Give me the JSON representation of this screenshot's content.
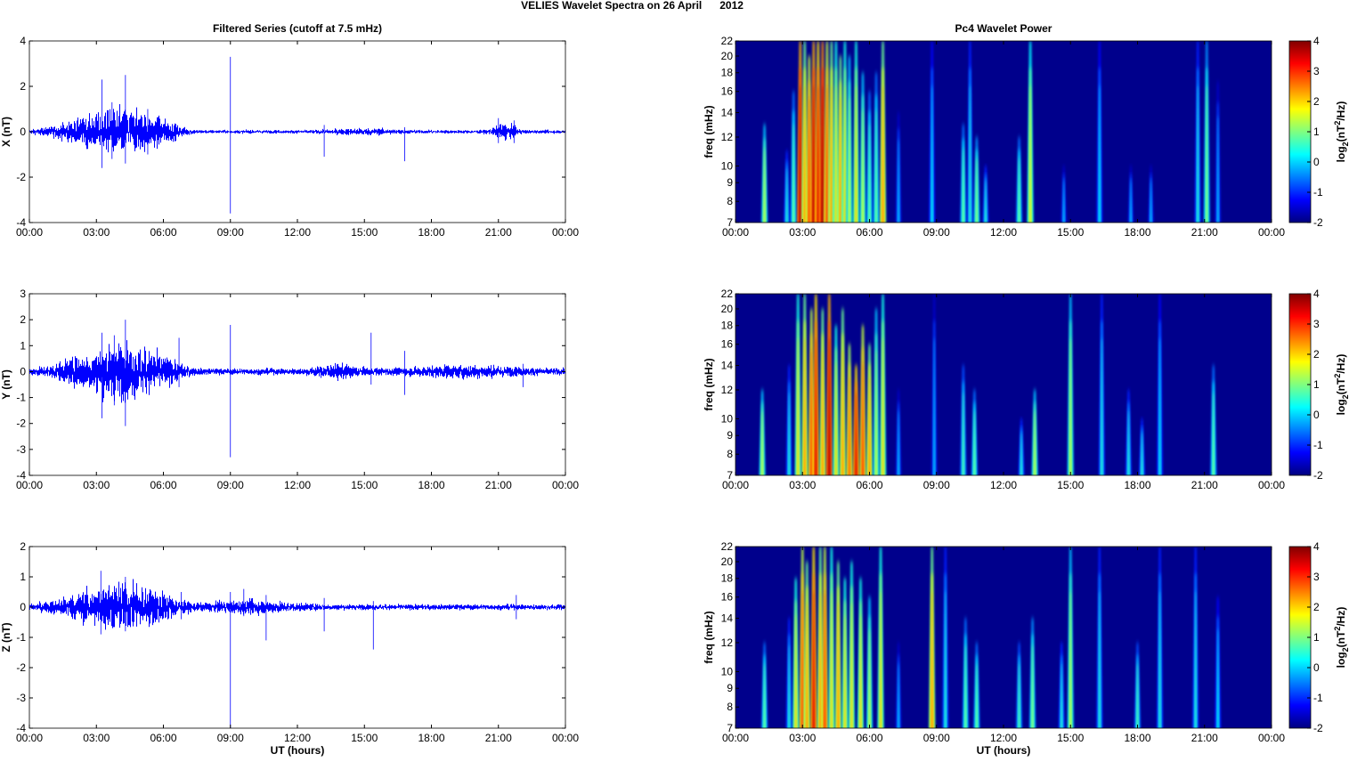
{
  "title": "VELIES Wavelet Spectra on 26 April      2012",
  "chart_data": {
    "type": "line+heatmap",
    "left_title": "Filtered Series (cutoff at 7.5 mHz)",
    "right_title": "Pc4 Wavelet Power",
    "xlabel": "UT (hours)",
    "xticks": [
      "00:00",
      "03:00",
      "06:00",
      "09:00",
      "12:00",
      "15:00",
      "18:00",
      "21:00",
      "00:00"
    ],
    "xlim": [
      0,
      24
    ],
    "freq_label": "freq (mHz)",
    "freq_ticks": [
      7,
      8,
      9,
      10,
      12,
      14,
      16,
      18,
      20,
      22
    ],
    "freq_lim": [
      7,
      22
    ],
    "colorbar": {
      "label_parts": [
        "log",
        "2",
        "(nT",
        "2",
        "/Hz)"
      ],
      "ticks": [
        -2,
        -1,
        0,
        1,
        2,
        3,
        4
      ],
      "lim": [
        -2,
        4
      ],
      "colormap": "jet"
    },
    "series": [
      {
        "name": "X",
        "ylabel": "X (nT)",
        "ylim": [
          -4,
          4
        ],
        "yticks": [
          -4,
          -2,
          0,
          2,
          4
        ],
        "color": "#0000ff",
        "base": 0.05,
        "activity": [
          [
            2.5,
            1.5,
            0.3
          ],
          [
            4.2,
            1.2,
            0.55
          ],
          [
            5.8,
            1,
            0.3
          ],
          [
            21.3,
            0.5,
            0.2
          ],
          [
            15,
            1.5,
            0.06
          ]
        ],
        "spikes": [
          [
            3.25,
            2.3,
            -1.6
          ],
          [
            4.3,
            2.5,
            -1.4
          ],
          [
            3.7,
            1.3,
            -1.2
          ],
          [
            5.3,
            1.0,
            -1.0
          ],
          [
            9.0,
            3.3,
            -3.6
          ],
          [
            13.2,
            0.3,
            -1.1
          ],
          [
            16.8,
            0.2,
            -1.3
          ],
          [
            21.0,
            0.6,
            -0.5
          ],
          [
            21.7,
            0.5,
            -0.5
          ]
        ]
      },
      {
        "name": "Y",
        "ylabel": "Y (nT)",
        "ylim": [
          -4,
          3
        ],
        "yticks": [
          -4,
          -3,
          -2,
          -1,
          0,
          1,
          2,
          3
        ],
        "color": "#0000ff",
        "base": 0.08,
        "activity": [
          [
            2.5,
            1.5,
            0.3
          ],
          [
            4.2,
            1.2,
            0.55
          ],
          [
            5.8,
            1,
            0.3
          ],
          [
            13.8,
            1,
            0.12
          ],
          [
            19.5,
            2.5,
            0.1
          ]
        ],
        "spikes": [
          [
            3.25,
            1.5,
            -1.8
          ],
          [
            4.3,
            2.0,
            -2.1
          ],
          [
            3.8,
            1.4,
            -1.3
          ],
          [
            6.7,
            1.3,
            -0.6
          ],
          [
            9.0,
            1.8,
            -3.3
          ],
          [
            15.3,
            1.5,
            -0.5
          ],
          [
            16.8,
            0.8,
            -0.9
          ],
          [
            22.1,
            0.3,
            -0.6
          ]
        ]
      },
      {
        "name": "Z",
        "ylabel": "Z (nT)",
        "ylim": [
          -4,
          2
        ],
        "yticks": [
          -4,
          -3,
          -2,
          -1,
          0,
          1,
          2
        ],
        "color": "#0000ff",
        "base": 0.06,
        "activity": [
          [
            2.5,
            1.5,
            0.25
          ],
          [
            4.2,
            1.2,
            0.4
          ],
          [
            5.8,
            1,
            0.25
          ],
          [
            10,
            2,
            0.1
          ]
        ],
        "spikes": [
          [
            3.2,
            1.2,
            -0.9
          ],
          [
            4.3,
            1.0,
            -0.8
          ],
          [
            6.8,
            0.5,
            -0.4
          ],
          [
            9.0,
            0.5,
            -4.0
          ],
          [
            9.6,
            0.6,
            -0.3
          ],
          [
            10.6,
            0.4,
            -1.1
          ],
          [
            13.2,
            0.3,
            -0.8
          ],
          [
            15.4,
            0.2,
            -1.4
          ],
          [
            21.8,
            0.4,
            -0.4
          ]
        ]
      }
    ],
    "spectra": [
      {
        "name": "X",
        "bursts": [
          [
            1.3,
            1.5,
            13
          ],
          [
            2.3,
            0.5,
            11
          ],
          [
            2.6,
            1,
            16
          ],
          [
            2.9,
            3.8,
            22
          ],
          [
            3.1,
            2.5,
            22
          ],
          [
            3.3,
            3,
            20
          ],
          [
            3.5,
            3.8,
            22
          ],
          [
            3.7,
            3.5,
            22
          ],
          [
            3.9,
            4,
            22
          ],
          [
            4.1,
            3,
            22
          ],
          [
            4.3,
            2.5,
            22
          ],
          [
            4.5,
            2,
            22
          ],
          [
            4.7,
            2.5,
            20
          ],
          [
            4.9,
            2,
            22
          ],
          [
            5.1,
            1.5,
            20
          ],
          [
            5.4,
            2,
            22
          ],
          [
            5.7,
            1.5,
            18
          ],
          [
            6.0,
            1,
            16
          ],
          [
            6.3,
            1,
            18
          ],
          [
            6.6,
            2.5,
            22
          ],
          [
            7.3,
            0,
            14
          ],
          [
            8.8,
            0.3,
            22
          ],
          [
            10.2,
            1,
            13
          ],
          [
            10.5,
            0.5,
            22
          ],
          [
            10.8,
            1.2,
            12
          ],
          [
            11.2,
            0.5,
            10
          ],
          [
            12.7,
            1,
            12
          ],
          [
            13.2,
            1.8,
            22
          ],
          [
            14.7,
            0,
            10
          ],
          [
            16.3,
            0.3,
            22
          ],
          [
            17.7,
            0,
            10
          ],
          [
            18.6,
            0,
            10
          ],
          [
            20.7,
            0.5,
            22
          ],
          [
            21.1,
            1.2,
            22
          ],
          [
            21.6,
            0,
            17
          ]
        ]
      },
      {
        "name": "Y",
        "bursts": [
          [
            1.2,
            1.5,
            12
          ],
          [
            2.4,
            0.5,
            14
          ],
          [
            2.8,
            2,
            22
          ],
          [
            3.1,
            2.5,
            22
          ],
          [
            3.4,
            3,
            20
          ],
          [
            3.6,
            3.5,
            22
          ],
          [
            3.9,
            2.5,
            20
          ],
          [
            4.2,
            3.8,
            22
          ],
          [
            4.5,
            2,
            18
          ],
          [
            4.8,
            2.5,
            20
          ],
          [
            5.1,
            2.8,
            16
          ],
          [
            5.4,
            3.5,
            14
          ],
          [
            5.7,
            3,
            18
          ],
          [
            6.0,
            2.5,
            16
          ],
          [
            6.3,
            1.5,
            20
          ],
          [
            6.6,
            2,
            22
          ],
          [
            7.3,
            0,
            12
          ],
          [
            8.9,
            0,
            22
          ],
          [
            10.2,
            0.8,
            14
          ],
          [
            10.7,
            1,
            12
          ],
          [
            12.8,
            0.5,
            10
          ],
          [
            13.4,
            1.5,
            12
          ],
          [
            15.0,
            1.5,
            22
          ],
          [
            16.4,
            0.5,
            22
          ],
          [
            17.6,
            0.5,
            12
          ],
          [
            18.2,
            0.5,
            10
          ],
          [
            19.0,
            0.3,
            22
          ],
          [
            21.4,
            1,
            14
          ]
        ]
      },
      {
        "name": "Z",
        "bursts": [
          [
            1.3,
            1,
            12
          ],
          [
            2.4,
            0.5,
            14
          ],
          [
            2.7,
            2,
            18
          ],
          [
            3.0,
            3,
            22
          ],
          [
            3.2,
            2.5,
            20
          ],
          [
            3.5,
            3.5,
            22
          ],
          [
            3.8,
            2.5,
            22
          ],
          [
            4.0,
            3,
            22
          ],
          [
            4.3,
            2,
            22
          ],
          [
            4.6,
            2.5,
            20
          ],
          [
            4.9,
            2,
            18
          ],
          [
            5.2,
            2,
            20
          ],
          [
            5.6,
            2,
            18
          ],
          [
            6.0,
            1.5,
            16
          ],
          [
            6.5,
            2,
            22
          ],
          [
            7.3,
            0,
            12
          ],
          [
            8.8,
            2.5,
            22
          ],
          [
            9.4,
            0.5,
            22
          ],
          [
            10.3,
            1,
            14
          ],
          [
            10.8,
            1,
            12
          ],
          [
            12.7,
            0.8,
            12
          ],
          [
            13.3,
            1.2,
            14
          ],
          [
            14.6,
            0.5,
            12
          ],
          [
            15.0,
            1.5,
            22
          ],
          [
            16.3,
            0.5,
            22
          ],
          [
            18.0,
            0.8,
            12
          ],
          [
            19.0,
            0.5,
            22
          ],
          [
            20.6,
            0.5,
            22
          ],
          [
            21.6,
            0.3,
            16
          ]
        ]
      }
    ]
  }
}
